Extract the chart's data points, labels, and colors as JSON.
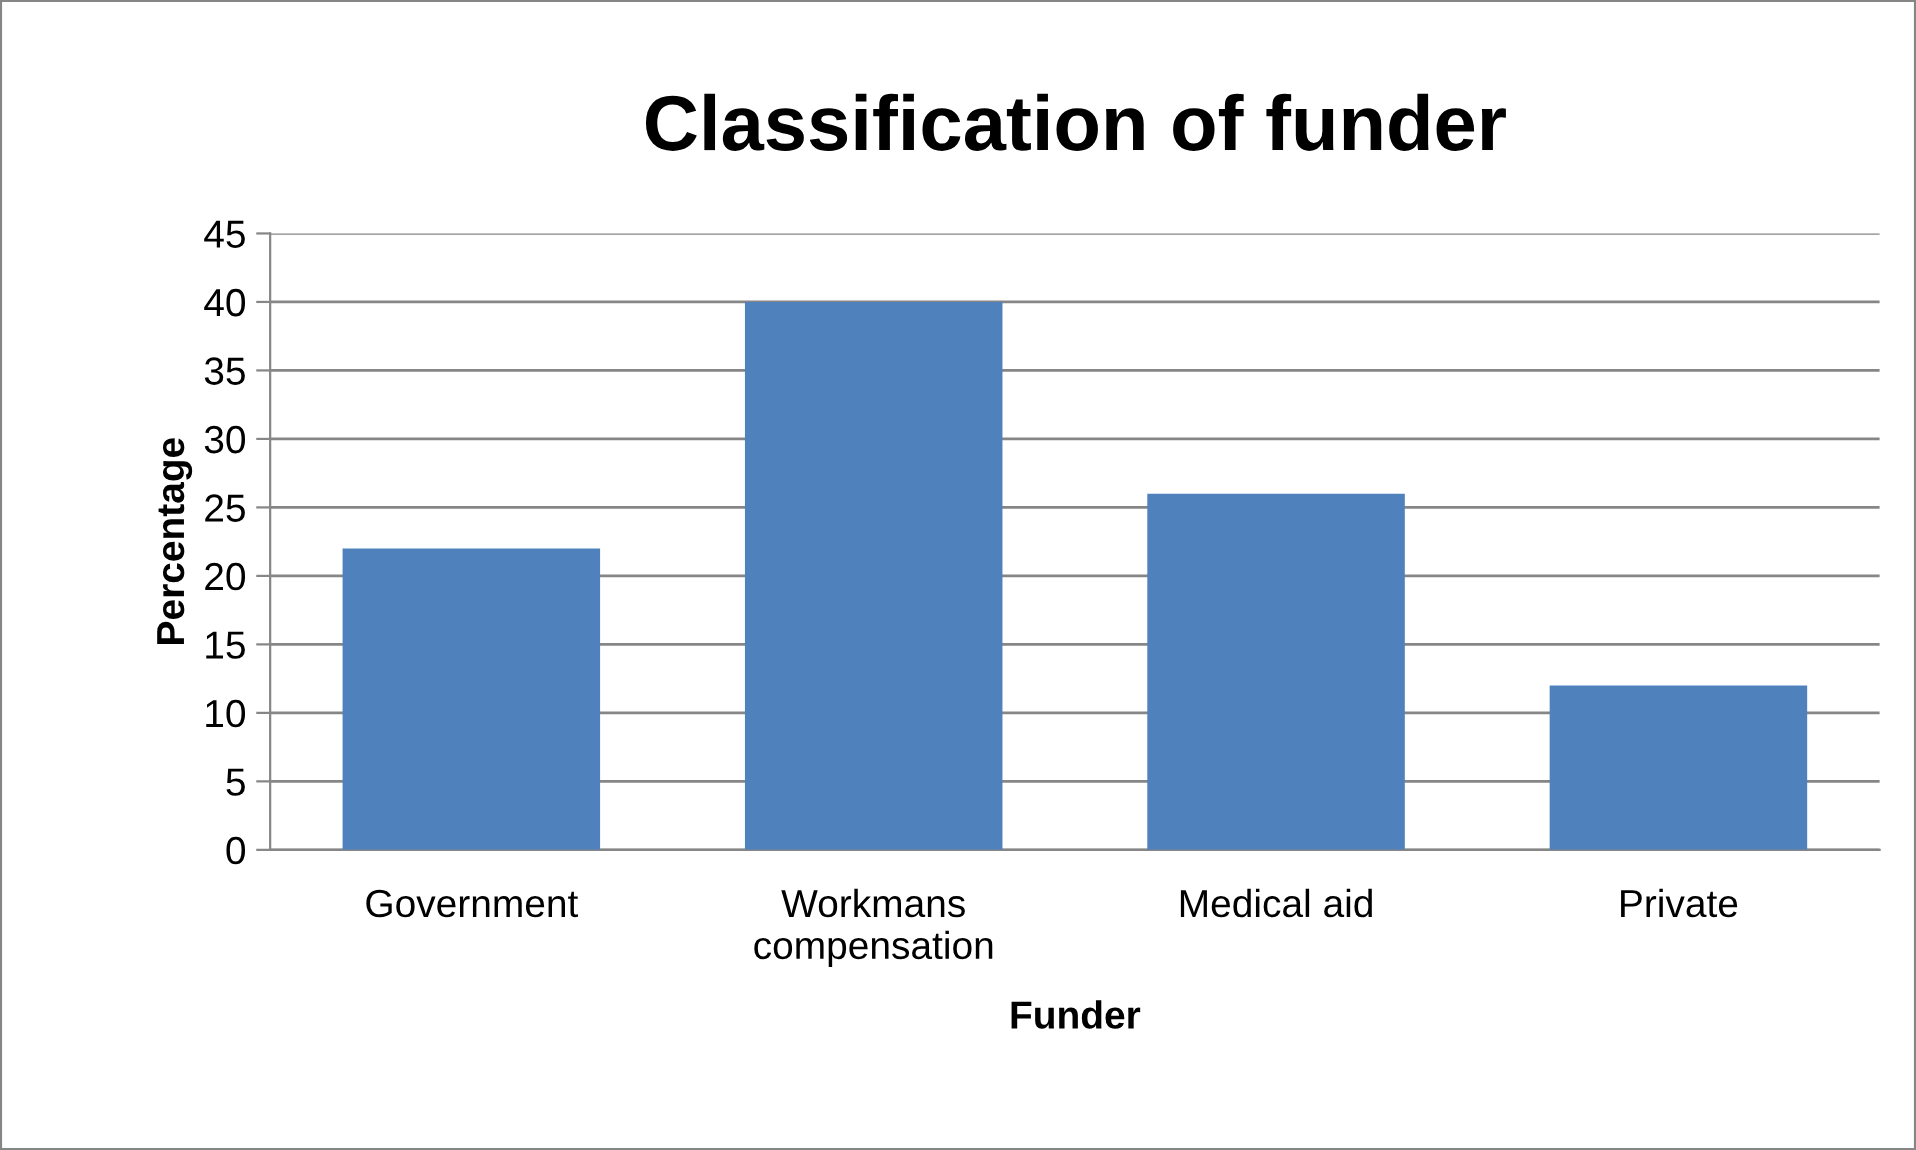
{
  "chart_data": {
    "type": "bar",
    "title": "Classification of funder",
    "xlabel": "Funder",
    "ylabel": "Percentage",
    "categories": [
      "Government",
      "Workmans compensation",
      "Medical aid",
      "Private"
    ],
    "values": [
      22,
      40,
      26,
      12
    ],
    "color": "#4f81bd",
    "ylim": [
      0,
      45
    ],
    "yticks": [
      0,
      5,
      10,
      15,
      20,
      25,
      30,
      35,
      40,
      45
    ],
    "grid": "y"
  }
}
